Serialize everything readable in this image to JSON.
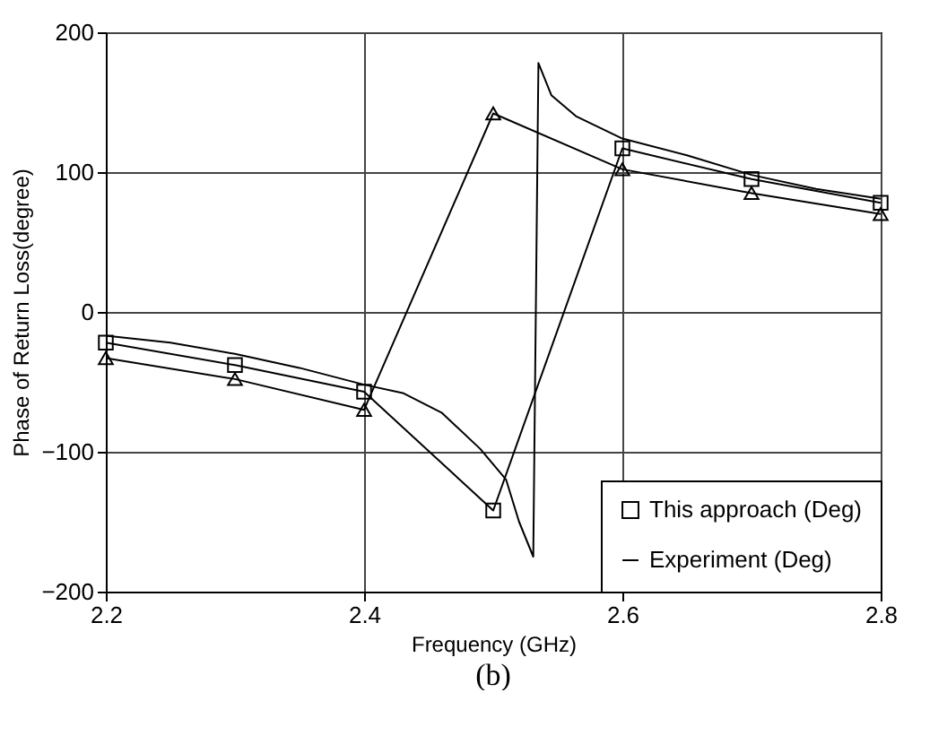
{
  "chart_data": {
    "type": "line",
    "xlabel": "Frequency (GHz)",
    "ylabel": "Phase of Return Loss(degree)",
    "annotations": [
      "(b)"
    ],
    "xlim": [
      2.2,
      2.8
    ],
    "xticks": [
      2.2,
      2.4,
      2.6,
      2.8
    ],
    "ylim": [
      -200,
      200
    ],
    "yticks": [
      -200,
      -100,
      0,
      100,
      200
    ],
    "grid": true,
    "legend": "bottom right",
    "series": [
      {
        "name": "This approach (Deg)",
        "color": "#000000",
        "marker": "square",
        "x": [
          2.2,
          2.3,
          2.4,
          2.5,
          2.6,
          2.7,
          2.8
        ],
        "values": [
          -22,
          -38,
          -57,
          -142,
          117,
          95,
          78
        ]
      },
      {
        "color": "#000000",
        "marker": "triangle",
        "x": [
          2.2,
          2.3,
          2.4,
          2.5,
          2.6,
          2.7,
          2.8
        ],
        "values": [
          -33,
          -48,
          -70,
          142,
          102,
          85,
          70
        ]
      },
      {
        "name": "Experiment (Deg)",
        "color": "#000000",
        "marker": "none",
        "x": [
          2.2,
          2.25,
          2.3,
          2.35,
          2.4,
          2.43,
          2.46,
          2.49,
          2.51,
          2.52,
          2.531,
          2.535,
          2.545,
          2.564,
          2.6,
          2.65,
          2.7,
          2.75,
          2.8
        ],
        "values": [
          -17,
          -22,
          -30,
          -40,
          -52,
          -58,
          -72,
          -98,
          -120,
          -150,
          -175,
          178,
          155,
          140,
          124,
          112,
          98,
          88,
          81
        ]
      }
    ]
  }
}
